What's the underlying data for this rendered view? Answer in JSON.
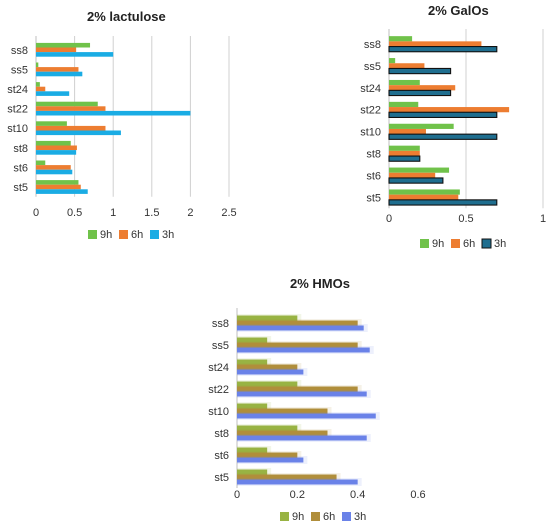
{
  "colors": {
    "lac_9h": "#70c24a",
    "lac_6h": "#ed7d31",
    "lac_3h": "#1aace4",
    "gal_9h": "#70c24a",
    "gal_6h": "#ed7d31",
    "gal_3h": "#1f6e8f",
    "hmo_9h": "#98b343",
    "hmo_6h": "#b08e3b",
    "hmo_3h": "#6a82e8",
    "grid": "#d0d0d0",
    "axis": "#bfbfbf",
    "text": "#333333"
  },
  "chart_data": [
    {
      "type": "bar",
      "orientation": "horizontal",
      "title": "2% lactulose",
      "categories": [
        "ss8",
        "ss5",
        "st24",
        "st22",
        "st10",
        "st8",
        "st6",
        "st5"
      ],
      "series": [
        {
          "name": "9h",
          "values": [
            0.7,
            0.03,
            0.05,
            0.8,
            0.4,
            0.45,
            0.12,
            0.55
          ]
        },
        {
          "name": "6h",
          "values": [
            0.52,
            0.55,
            0.12,
            0.9,
            0.9,
            0.53,
            0.45,
            0.58
          ]
        },
        {
          "name": "3h",
          "values": [
            1.0,
            0.6,
            0.43,
            2.0,
            1.1,
            0.52,
            0.47,
            0.67
          ]
        }
      ],
      "xlim": [
        0,
        2.5
      ],
      "xticks": [
        "0",
        "0.5",
        "1",
        "1.5",
        "2",
        "2.5"
      ],
      "grid": true,
      "legend": "bottom"
    },
    {
      "type": "bar",
      "orientation": "horizontal",
      "title": "2% GalOs",
      "categories": [
        "ss8",
        "ss5",
        "st24",
        "st22",
        "st10",
        "st8",
        "st6",
        "st5"
      ],
      "series": [
        {
          "name": "9h",
          "values": [
            0.15,
            0.04,
            0.2,
            0.19,
            0.42,
            0.2,
            0.39,
            0.46
          ]
        },
        {
          "name": "6h",
          "values": [
            0.6,
            0.23,
            0.43,
            0.78,
            0.24,
            0.2,
            0.3,
            0.45
          ]
        },
        {
          "name": "3h",
          "values": [
            0.7,
            0.4,
            0.4,
            0.7,
            0.7,
            0.2,
            0.35,
            0.7
          ]
        }
      ],
      "xlim": [
        0,
        1
      ],
      "xticks": [
        "0",
        "0.5",
        "1"
      ],
      "grid": true,
      "legend": "bottom"
    },
    {
      "type": "bar",
      "orientation": "horizontal",
      "title": "2% HMOs",
      "categories": [
        "ss8",
        "ss5",
        "st24",
        "st22",
        "st10",
        "st8",
        "st6",
        "st5"
      ],
      "series": [
        {
          "name": "9h",
          "values": [
            0.2,
            0.1,
            0.1,
            0.2,
            0.1,
            0.2,
            0.1,
            0.1
          ]
        },
        {
          "name": "6h",
          "values": [
            0.4,
            0.4,
            0.2,
            0.4,
            0.3,
            0.3,
            0.2,
            0.33
          ]
        },
        {
          "name": "3h",
          "values": [
            0.42,
            0.44,
            0.22,
            0.43,
            0.46,
            0.43,
            0.22,
            0.4
          ]
        }
      ],
      "xlim": [
        0,
        0.6
      ],
      "xticks": [
        "0",
        "0.2",
        "0.4",
        "0.6"
      ],
      "grid": false,
      "legend": "bottom"
    }
  ]
}
